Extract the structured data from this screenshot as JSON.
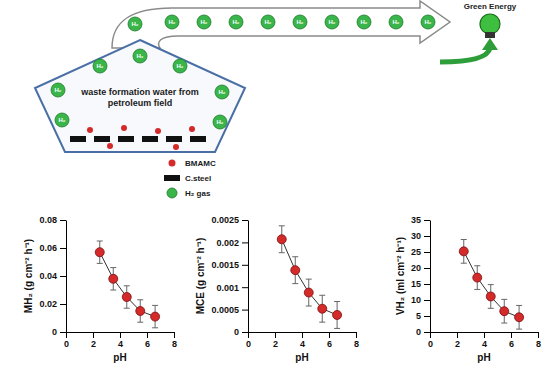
{
  "diagram": {
    "title": "Green Energy",
    "tank_label": "waste formation water from petroleum field",
    "gas_label": "H₂",
    "legend": [
      {
        "label": "BMAMC"
      },
      {
        "label": "C.steel"
      },
      {
        "label": "H₂ gas"
      }
    ]
  },
  "chart_data": [
    {
      "type": "line",
      "x_label": "pH",
      "y_label": "MH₂ (g cm⁻² h⁻¹)",
      "x": [
        2.5,
        3.5,
        4.5,
        5.5,
        6.6
      ],
      "values": [
        0.057,
        0.038,
        0.025,
        0.015,
        0.011
      ],
      "errors": [
        0.008,
        0.008,
        0.008,
        0.008,
        0.008
      ],
      "xlim": [
        0,
        8
      ],
      "xticks": [
        0,
        2,
        4,
        6,
        8
      ],
      "ylim": [
        0,
        0.08
      ],
      "yticks": [
        0,
        0.02,
        0.04,
        0.06,
        0.08
      ],
      "color": "#d42a2a",
      "marker": "circle"
    },
    {
      "type": "line",
      "x_label": "pH",
      "y_label": "MCE (g cm⁻² h⁻¹)",
      "x": [
        2.5,
        3.5,
        4.5,
        5.5,
        6.6
      ],
      "values": [
        0.00207,
        0.00138,
        0.00088,
        0.00052,
        0.00038
      ],
      "errors": [
        0.0003,
        0.0003,
        0.0003,
        0.0003,
        0.0003
      ],
      "xlim": [
        0,
        8
      ],
      "xticks": [
        0,
        2,
        4,
        6,
        8
      ],
      "ylim": [
        0,
        0.0025
      ],
      "yticks": [
        0,
        0.0005,
        0.001,
        0.0015,
        0.002,
        0.0025
      ],
      "color": "#d42a2a",
      "marker": "circle"
    },
    {
      "type": "line",
      "x_label": "pH",
      "y_label": "VH₂ (ml cm⁻² h⁻¹)",
      "x": [
        2.5,
        3.5,
        4.5,
        5.5,
        6.6
      ],
      "values": [
        25.2,
        17.0,
        11.1,
        6.5,
        4.6
      ],
      "errors": [
        3.7,
        3.7,
        3.7,
        3.7,
        3.7
      ],
      "xlim": [
        0,
        8
      ],
      "xticks": [
        0,
        2,
        4,
        6,
        8
      ],
      "ylim": [
        0,
        35
      ],
      "yticks": [
        0,
        5,
        10,
        15,
        20,
        25,
        30,
        35
      ],
      "color": "#d42a2a",
      "marker": "circle"
    }
  ]
}
